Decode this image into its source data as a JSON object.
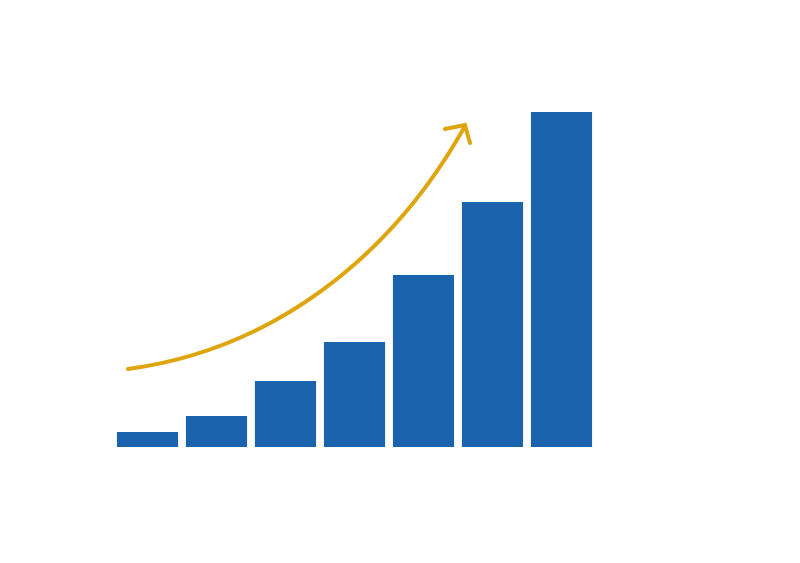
{
  "chart_data": {
    "type": "bar",
    "values": [
      15,
      31,
      66,
      105,
      172,
      245,
      335
    ],
    "color": "#1c63ad",
    "ylim": [
      0,
      335
    ]
  }
}
